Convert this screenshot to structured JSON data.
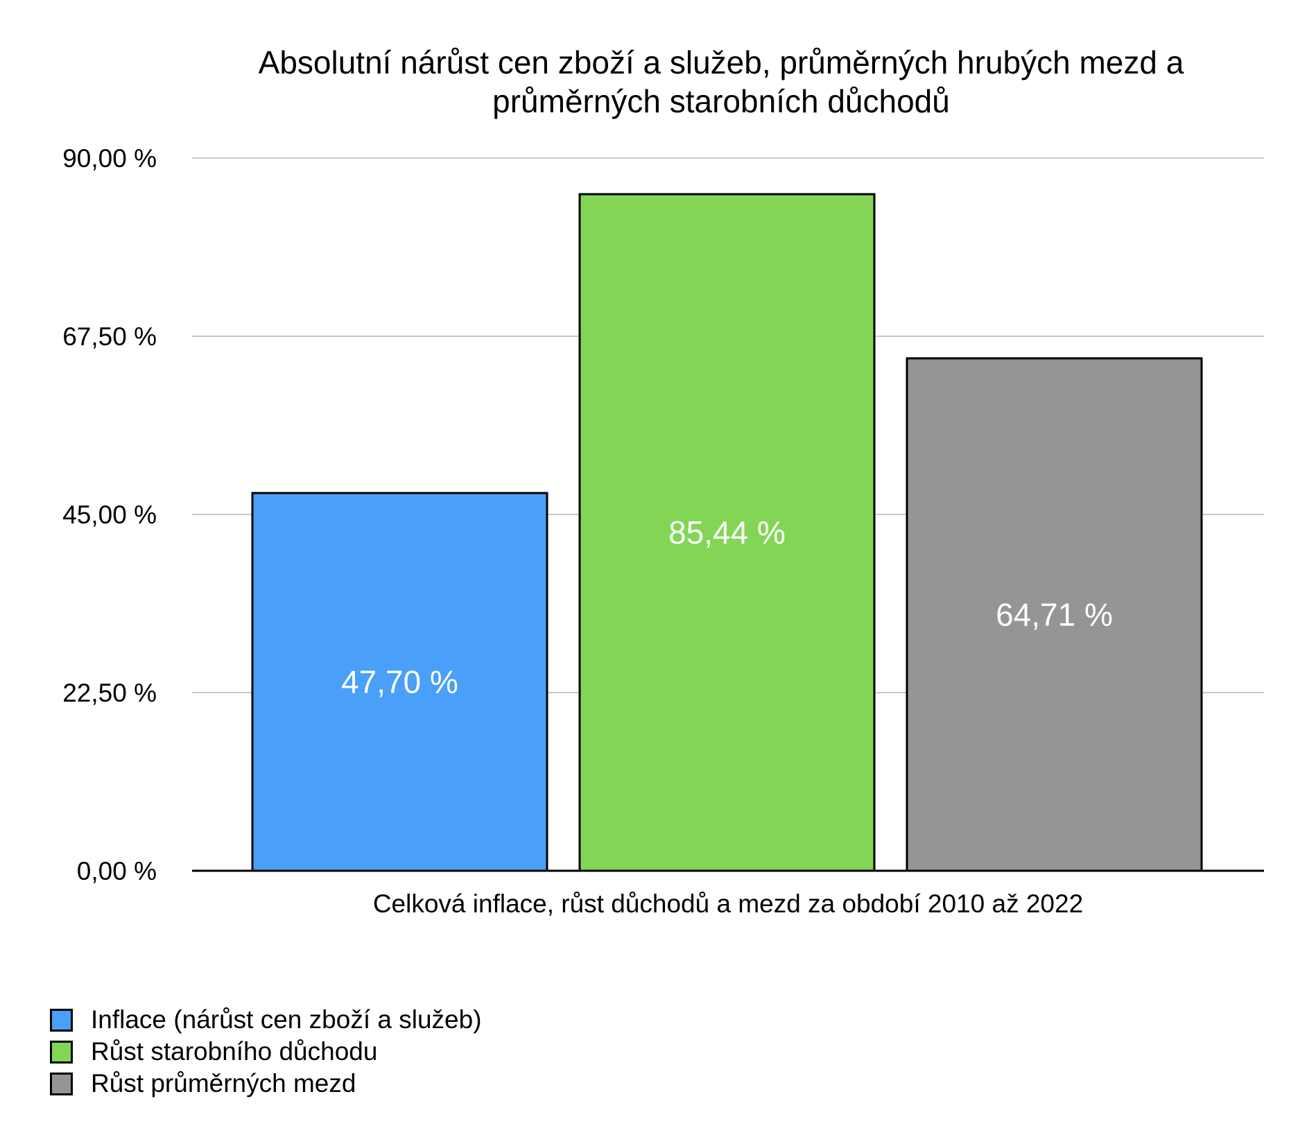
{
  "chart_data": {
    "type": "bar",
    "title": [
      "Absolutní nárůst cen zboží a služeb, průměrných hrubých mezd a",
      "průměrných starobních důchodů"
    ],
    "xlabel": "Celková inflace, růst důchodů a mezd za období 2010 až 2022",
    "ylabel": "",
    "ylim": [
      0,
      90
    ],
    "yticks": [
      0,
      22.5,
      45,
      67.5,
      90
    ],
    "ytick_labels": [
      "0,00 %",
      "22,50 %",
      "45,00 %",
      "67,50 %",
      "90,00 %"
    ],
    "grid": true,
    "legend_position": "bottom-left",
    "series": [
      {
        "name": "Inflace (nárůst cen zboží a služeb)",
        "value": 47.7,
        "label": "47,70 %",
        "color": "#4A9FF8"
      },
      {
        "name": "Růst starobního důchodu",
        "value": 85.44,
        "label": "85,44 %",
        "color": "#83D655"
      },
      {
        "name": "Růst průměrných mezd",
        "value": 64.71,
        "label": "64,71 %",
        "color": "#959595"
      }
    ]
  }
}
